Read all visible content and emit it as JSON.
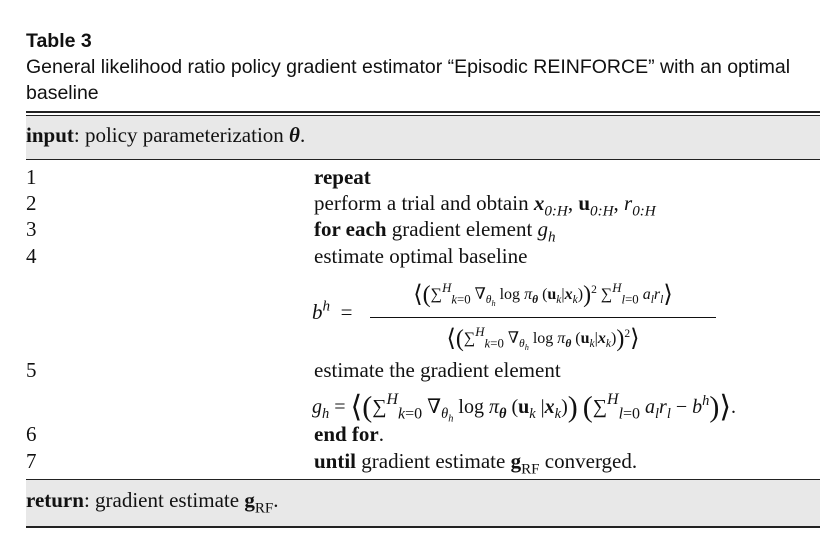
{
  "caption": {
    "label": "Table 3",
    "title": "General likelihood ratio policy gradient estimator “Episodic REINFORCE” with an optimal baseline"
  },
  "header": {
    "keyword": "input",
    "text": ": policy parameterization ",
    "symbol": "θ",
    "end": "."
  },
  "line_numbers": [
    "1",
    "2",
    "3",
    "4",
    "5",
    "6",
    "7"
  ],
  "steps": {
    "s1": {
      "bold": "repeat"
    },
    "s2": {
      "text": "perform a trial and obtain "
    },
    "s3": {
      "bold": "for each",
      "text": " gradient element "
    },
    "s4": {
      "text": "estimate optimal baseline"
    },
    "s5": {
      "text": "estimate the gradient element"
    },
    "s6": {
      "bold": "end for",
      "text": "."
    },
    "s7": {
      "bold": "until",
      "text": " gradient estimate ",
      "tail": " converged."
    }
  },
  "footer": {
    "keyword": "return",
    "text": ": gradient estimate ",
    "end": "."
  }
}
